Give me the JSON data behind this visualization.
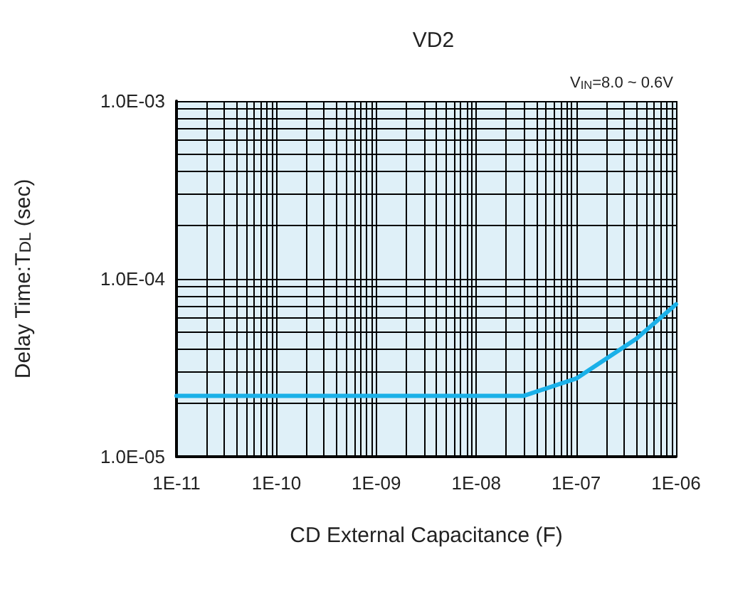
{
  "chart_data": {
    "type": "line",
    "title": "VD2",
    "xlabel": "CD External Capacitance (F)",
    "ylabel": "Delay Time:T$_{DL}$ (sec)",
    "annotations": [
      "V$_{IN}$=8.0 ~ 0.6V"
    ],
    "log": "xy",
    "grid": true,
    "marker": "none",
    "line_style": "solid",
    "xlim": [
      1e-11,
      1e-06
    ],
    "ylim": [
      1e-05,
      0.001
    ],
    "xticks": [
      {
        "value": 1e-11,
        "label": "1E-11"
      },
      {
        "value": 2e-11,
        "label": null
      },
      {
        "value": 3e-11,
        "label": null
      },
      {
        "value": 4e-11,
        "label": null
      },
      {
        "value": 5e-11,
        "label": null
      },
      {
        "value": 6e-11,
        "label": null
      },
      {
        "value": 7e-11,
        "label": null
      },
      {
        "value": 8e-11,
        "label": null
      },
      {
        "value": 9e-11,
        "label": null
      },
      {
        "value": 1e-10,
        "label": "1E-10"
      },
      {
        "value": 2e-10,
        "label": null
      },
      {
        "value": 3e-10,
        "label": null
      },
      {
        "value": 4e-10,
        "label": null
      },
      {
        "value": 5e-10,
        "label": null
      },
      {
        "value": 6e-10,
        "label": null
      },
      {
        "value": 7e-10,
        "label": null
      },
      {
        "value": 8e-10,
        "label": null
      },
      {
        "value": 9e-10,
        "label": null
      },
      {
        "value": 1e-09,
        "label": "1E-09"
      },
      {
        "value": 2e-09,
        "label": null
      },
      {
        "value": 3e-09,
        "label": null
      },
      {
        "value": 4e-09,
        "label": null
      },
      {
        "value": 5e-09,
        "label": null
      },
      {
        "value": 6e-09,
        "label": null
      },
      {
        "value": 7e-09,
        "label": null
      },
      {
        "value": 8e-09,
        "label": null
      },
      {
        "value": 9e-09,
        "label": null
      },
      {
        "value": 1e-08,
        "label": "1E-08"
      },
      {
        "value": 2e-08,
        "label": null
      },
      {
        "value": 3e-08,
        "label": null
      },
      {
        "value": 4e-08,
        "label": null
      },
      {
        "value": 5e-08,
        "label": null
      },
      {
        "value": 6e-08,
        "label": null
      },
      {
        "value": 7e-08,
        "label": null
      },
      {
        "value": 8e-08,
        "label": null
      },
      {
        "value": 9e-08,
        "label": null
      },
      {
        "value": 1e-07,
        "label": "1E-07"
      },
      {
        "value": 2e-07,
        "label": null
      },
      {
        "value": 3e-07,
        "label": null
      },
      {
        "value": 4e-07,
        "label": null
      },
      {
        "value": 5e-07,
        "label": null
      },
      {
        "value": 6e-07,
        "label": null
      },
      {
        "value": 7e-07,
        "label": null
      },
      {
        "value": 8e-07,
        "label": null
      },
      {
        "value": 9e-07,
        "label": null
      },
      {
        "value": 1e-06,
        "label": "1E-06"
      }
    ],
    "yticks": [
      {
        "value": 1e-05,
        "label": "1.0E-05"
      },
      {
        "value": 2e-05,
        "label": null
      },
      {
        "value": 3e-05,
        "label": null
      },
      {
        "value": 4e-05,
        "label": null
      },
      {
        "value": 5e-05,
        "label": null
      },
      {
        "value": 6e-05,
        "label": null
      },
      {
        "value": 7e-05,
        "label": null
      },
      {
        "value": 8e-05,
        "label": null
      },
      {
        "value": 9e-05,
        "label": null
      },
      {
        "value": 0.0001,
        "label": "1.0E-04"
      },
      {
        "value": 0.0002,
        "label": null
      },
      {
        "value": 0.0003,
        "label": null
      },
      {
        "value": 0.0004,
        "label": null
      },
      {
        "value": 0.0005,
        "label": null
      },
      {
        "value": 0.0006,
        "label": null
      },
      {
        "value": 0.0007,
        "label": null
      },
      {
        "value": 0.0008,
        "label": null
      },
      {
        "value": 0.0009,
        "label": null
      },
      {
        "value": 0.001,
        "label": "1.0E-03"
      }
    ],
    "series": [
      {
        "color": "#1ab0e8",
        "x": [
          1e-11,
          1e-10,
          1e-09,
          1e-08,
          3e-08,
          1e-07,
          4e-07,
          1e-06
        ],
        "values": [
          2.2e-05,
          2.2e-05,
          2.2e-05,
          2.2e-05,
          2.2e-05,
          2.75e-05,
          4.6e-05,
          7.2e-05
        ]
      }
    ]
  }
}
